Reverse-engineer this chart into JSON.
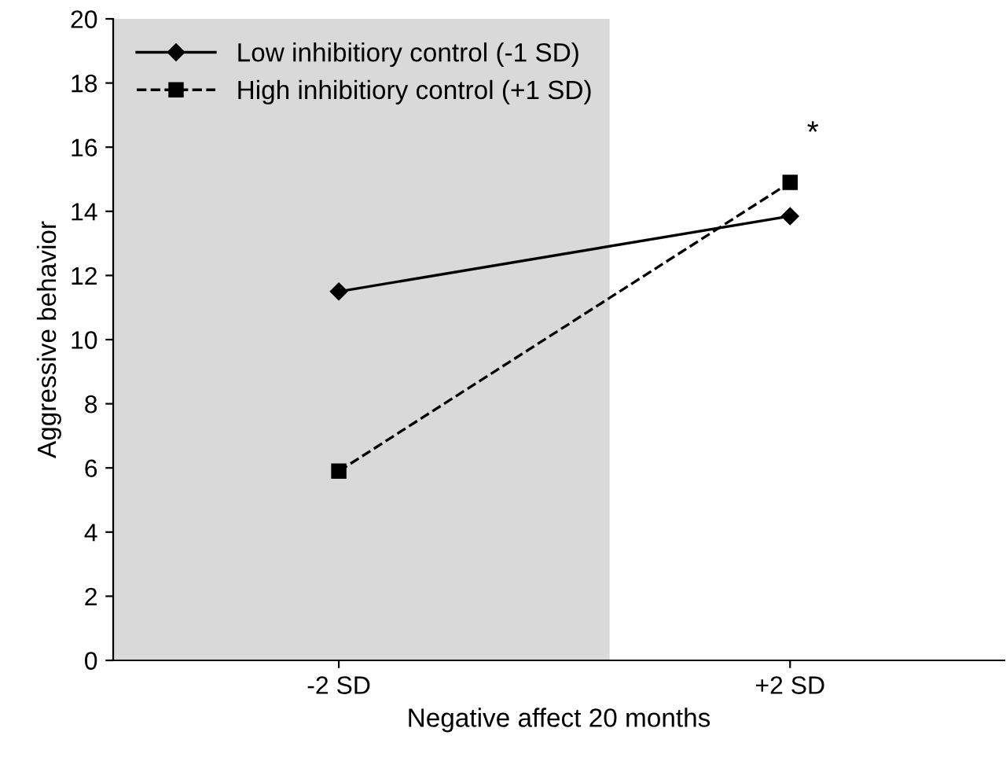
{
  "chart_data": {
    "type": "line",
    "xlabel": "Negative affect 20 months",
    "ylabel": "Aggressive behavior",
    "x": [
      -2,
      2
    ],
    "series": [
      {
        "name": "Low inhibitiory control (-1 SD)",
        "color": "#000000",
        "values": [
          11.5,
          13.85
        ],
        "marker": "diamond",
        "line_style": "solid"
      },
      {
        "name": "High inhibitiory control (+1 SD)",
        "color": "#000000",
        "values": [
          5.9,
          14.9
        ],
        "marker": "square",
        "line_style": "dashed"
      }
    ],
    "xlim": [
      -4,
      3.9
    ],
    "xticks": [
      {
        "value": -2,
        "label": "-2 SD"
      },
      {
        "value": 2,
        "label": "+2 SD"
      }
    ],
    "ylim": [
      0,
      20
    ],
    "yticks": [
      0,
      2,
      4,
      6,
      8,
      10,
      12,
      14,
      16,
      18,
      20
    ],
    "bands": [
      {
        "axis": "x",
        "from": -4,
        "to": 0.4,
        "color": "#d9d9d9"
      }
    ],
    "annotations": [
      "*"
    ],
    "legend": "top left",
    "grid": false
  }
}
